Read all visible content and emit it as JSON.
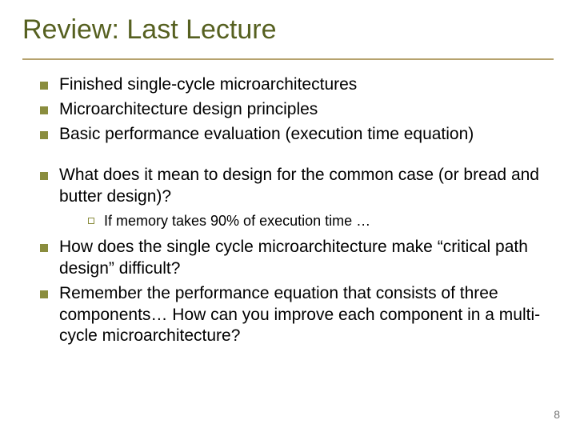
{
  "title": "Review: Last Lecture",
  "page_number": "8",
  "colors": {
    "title": "#566020",
    "rule": "#b6a26e",
    "bullet_fill": "#8a8d3e",
    "bullet_border": "#8a8d3e",
    "text": "#000000",
    "background": "#ffffff",
    "pagenum": "#777777"
  },
  "typography": {
    "title_font": "Arial",
    "title_size_pt": 26,
    "body_font": "Verdana",
    "body_size_pt": 16,
    "sub_size_pt": 14
  },
  "group1": [
    "Finished single-cycle microarchitectures",
    "Microarchitecture design principles",
    "Basic performance evaluation (execution time equation)"
  ],
  "group2_lead": "What does it mean to design for the common case (or bread and butter design)?",
  "group2_sub": [
    "If memory takes 90% of execution time …"
  ],
  "group2_rest": [
    "How does the single cycle microarchitecture make “critical path design” difficult?",
    "Remember the performance equation that consists of three components… How can you improve each component in a multi-cycle microarchitecture?"
  ]
}
